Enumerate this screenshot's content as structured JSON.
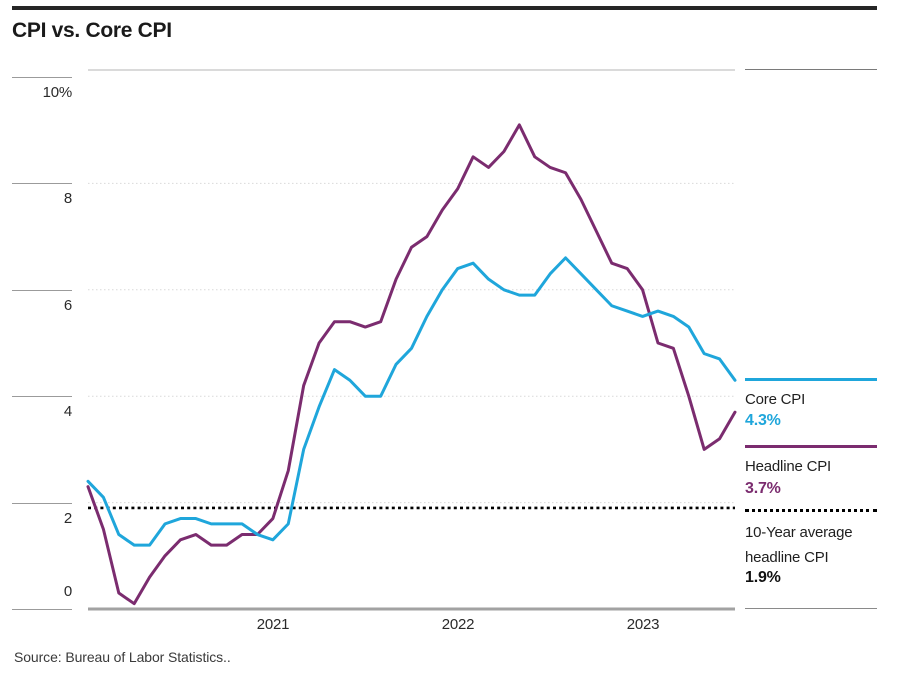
{
  "page": {
    "title": "CPI vs. Core CPI",
    "source": "Source: Bureau of Labor Statistics.."
  },
  "colors": {
    "core_cpi": "#1FA6DB",
    "headline_cpi": "#7B2C6F",
    "average_line": "#000000",
    "gridline": "#D9D9D9",
    "plot_top_border": "#B4B4B4",
    "bottom_axis": "#A2A2A2",
    "tick": "#9B9B9B"
  },
  "legend": {
    "core": {
      "label": "Core CPI",
      "value": "4.3%"
    },
    "headline": {
      "label": "Headline CPI",
      "value": "3.7%"
    },
    "average": {
      "label": "10-Year average headline CPI",
      "value": "1.9%"
    }
  },
  "chart_data": {
    "type": "line",
    "title": "CPI vs. Core CPI",
    "xlabel": "",
    "ylabel": "",
    "ylim": [
      0,
      10
    ],
    "grid": "horizontal-dotted",
    "legend_position": "right",
    "x": [
      "Feb 2020",
      "Mar 2020",
      "Apr 2020",
      "May 2020",
      "Jun 2020",
      "Jul 2020",
      "Aug 2020",
      "Sep 2020",
      "Oct 2020",
      "Nov 2020",
      "Dec 2020",
      "Jan 2021",
      "Feb 2021",
      "Mar 2021",
      "Apr 2021",
      "May 2021",
      "Jun 2021",
      "Jul 2021",
      "Aug 2021",
      "Sep 2021",
      "Oct 2021",
      "Nov 2021",
      "Dec 2021",
      "Jan 2022",
      "Feb 2022",
      "Mar 2022",
      "Apr 2022",
      "May 2022",
      "Jun 2022",
      "Jul 2022",
      "Aug 2022",
      "Sep 2022",
      "Oct 2022",
      "Nov 2022",
      "Dec 2022",
      "Jan 2023",
      "Feb 2023",
      "Mar 2023",
      "Apr 2023",
      "May 2023",
      "Jun 2023",
      "Jul 2023",
      "Aug 2023"
    ],
    "series": [
      {
        "name": "Headline CPI",
        "color": "#7B2C6F",
        "last_value_label": "3.7%",
        "values": [
          2.3,
          1.5,
          0.3,
          0.1,
          0.6,
          1.0,
          1.3,
          1.4,
          1.2,
          1.2,
          1.4,
          1.4,
          1.7,
          2.6,
          4.2,
          5.0,
          5.4,
          5.4,
          5.3,
          5.4,
          6.2,
          6.8,
          7.0,
          7.5,
          7.9,
          8.5,
          8.3,
          8.6,
          9.1,
          8.5,
          8.3,
          8.2,
          7.7,
          7.1,
          6.5,
          6.4,
          6.0,
          5.0,
          4.9,
          4.0,
          3.0,
          3.2,
          3.7
        ]
      },
      {
        "name": "Core CPI",
        "color": "#1FA6DB",
        "last_value_label": "4.3%",
        "values": [
          2.4,
          2.1,
          1.4,
          1.2,
          1.2,
          1.6,
          1.7,
          1.7,
          1.6,
          1.6,
          1.6,
          1.4,
          1.3,
          1.6,
          3.0,
          3.8,
          4.5,
          4.3,
          4.0,
          4.0,
          4.6,
          4.9,
          5.5,
          6.0,
          6.4,
          6.5,
          6.2,
          6.0,
          5.9,
          5.9,
          6.3,
          6.6,
          6.3,
          6.0,
          5.7,
          5.6,
          5.5,
          5.6,
          5.5,
          5.3,
          4.8,
          4.7,
          4.3
        ]
      }
    ],
    "reference_line": {
      "label": "10-Year average headline CPI",
      "value": 1.9,
      "style": "dotted",
      "color": "#000000"
    },
    "yticks": [
      {
        "value": 10,
        "label": "10%"
      },
      {
        "value": 8,
        "label": "8"
      },
      {
        "value": 6,
        "label": "6"
      },
      {
        "value": 4,
        "label": "4"
      },
      {
        "value": 2,
        "label": "2"
      },
      {
        "value": 0,
        "label": "0"
      }
    ],
    "xticks": [
      {
        "index": 12,
        "label": "2021"
      },
      {
        "index": 24,
        "label": "2022"
      },
      {
        "index": 36,
        "label": "2023"
      }
    ]
  }
}
